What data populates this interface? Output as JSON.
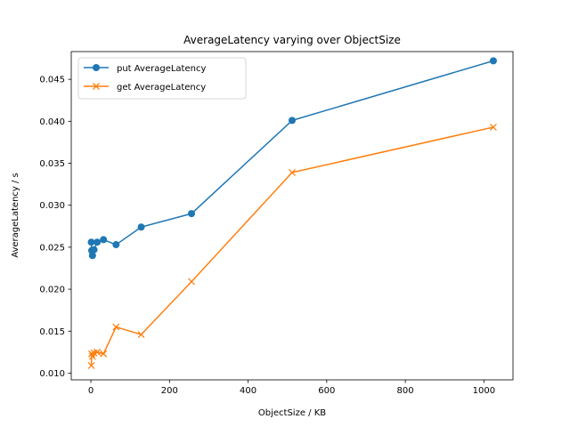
{
  "chart_data": {
    "type": "line",
    "title": "AverageLatency varying over ObjectSize",
    "xlabel": "ObjectSize / KB",
    "ylabel": "AverageLatency / s",
    "xlim": [
      -50,
      1074
    ],
    "ylim": [
      0.0092,
      0.0483
    ],
    "xticks": [
      0,
      200,
      400,
      600,
      800,
      1000
    ],
    "xtick_labels": [
      "0",
      "200",
      "400",
      "600",
      "800",
      "1000"
    ],
    "yticks": [
      0.01,
      0.015,
      0.02,
      0.025,
      0.03,
      0.035,
      0.04,
      0.045
    ],
    "ytick_labels": [
      "0.010",
      "0.015",
      "0.020",
      "0.025",
      "0.030",
      "0.035",
      "0.040",
      "0.045"
    ],
    "grid": false,
    "legend_position": "top-left",
    "series": [
      {
        "name": "put AverageLatency",
        "color": "#1f77b4",
        "marker": "circle",
        "x": [
          1,
          2,
          4,
          8,
          16,
          32,
          64,
          128,
          256,
          512,
          1024
        ],
        "y": [
          0.0256,
          0.0246,
          0.024,
          0.0247,
          0.0256,
          0.0259,
          0.0253,
          0.0274,
          0.029,
          0.0401,
          0.0472
        ]
      },
      {
        "name": "get AverageLatency",
        "color": "#ff7f0e",
        "marker": "x",
        "x": [
          1,
          2,
          4,
          8,
          16,
          32,
          64,
          128,
          256,
          512,
          1024
        ],
        "y": [
          0.0109,
          0.0123,
          0.012,
          0.0124,
          0.0125,
          0.0123,
          0.0155,
          0.0146,
          0.0209,
          0.0339,
          0.0393
        ]
      }
    ]
  }
}
